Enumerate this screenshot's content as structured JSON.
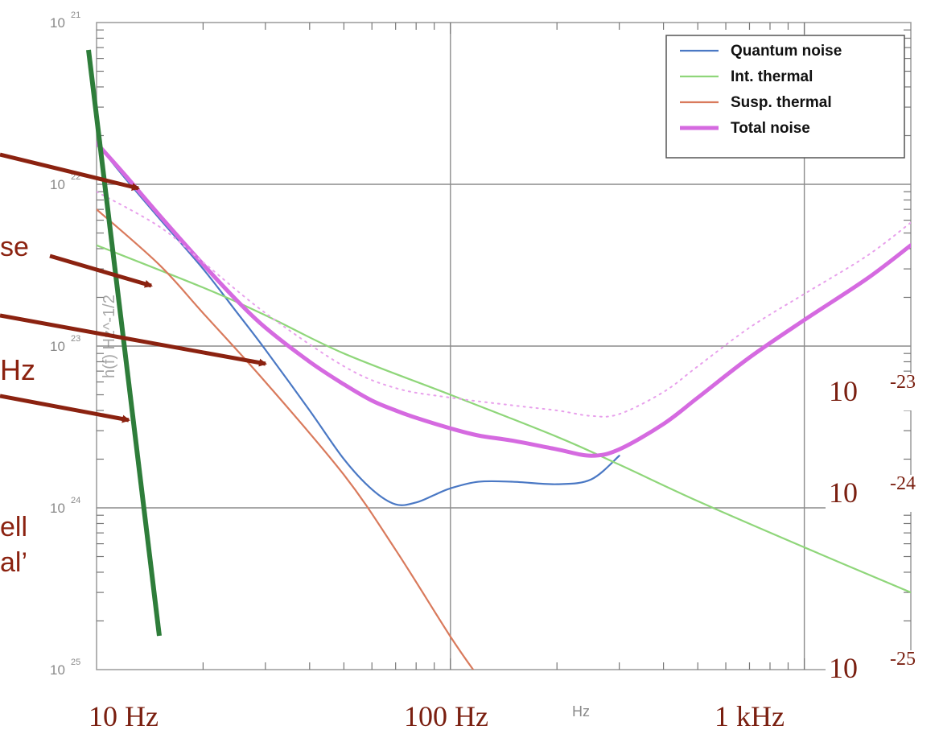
{
  "chart_data": {
    "type": "line",
    "x_scale": "log",
    "y_scale": "log",
    "xlim": [
      10,
      2000
    ],
    "ylim": [
      1e-25,
      1e-21
    ],
    "grid": true,
    "legend_position": "top-right",
    "y_ticks": [
      {
        "value": 1e-21,
        "base": "10",
        "exp": "21"
      },
      {
        "value": 1e-22,
        "base": "10",
        "exp": "22"
      },
      {
        "value": 1e-23,
        "base": "10",
        "exp": "23"
      },
      {
        "value": 1e-24,
        "base": "10",
        "exp": "24"
      },
      {
        "value": 1e-25,
        "base": "10",
        "exp": "25"
      }
    ],
    "ylabel_fragment": "h(f) Hz^-1/2",
    "xlabel_fragment": "Hz",
    "series": [
      {
        "name": "Quantum noise",
        "color": "#4a78c4",
        "x": [
          10,
          12,
          15,
          20,
          25,
          30,
          40,
          50,
          60,
          70,
          80,
          90,
          100,
          120,
          150,
          200,
          250,
          300
        ],
        "y": [
          1.8e-22,
          1.1e-22,
          6.2e-23,
          3e-23,
          1.6e-23,
          9.5e-24,
          4e-24,
          2e-24,
          1.3e-24,
          1.05e-24,
          1.08e-24,
          1.2e-24,
          1.32e-24,
          1.45e-24,
          1.45e-24,
          1.4e-24,
          1.5e-24,
          2.1e-24
        ]
      },
      {
        "name": "Int. thermal",
        "color": "#8fd67a",
        "x": [
          10,
          20,
          30,
          50,
          100,
          200,
          300,
          500,
          1000,
          2000
        ],
        "y": [
          4.2e-23,
          2.3e-23,
          1.55e-23,
          9e-24,
          5e-24,
          2.75e-24,
          1.85e-24,
          1.1e-24,
          5.7e-25,
          3e-25
        ]
      },
      {
        "name": "Susp. thermal",
        "color": "#d97a5c",
        "x": [
          10,
          15,
          20,
          30,
          50,
          70,
          100,
          120
        ],
        "y": [
          7e-23,
          3.2e-23,
          1.6e-23,
          6e-24,
          1.6e-24,
          5.5e-25,
          1.6e-25,
          9e-26
        ]
      },
      {
        "name": "Total noise",
        "color": "#d56ae0",
        "x": [
          10,
          12,
          15,
          20,
          25,
          30,
          40,
          50,
          60,
          70,
          80,
          100,
          120,
          150,
          200,
          250,
          300,
          400,
          500,
          700,
          1000,
          1500,
          2000
        ],
        "y": [
          1.8e-22,
          1.15e-22,
          6.5e-23,
          3.2e-23,
          1.9e-23,
          1.3e-23,
          8e-24,
          5.8e-24,
          4.6e-24,
          4e-24,
          3.6e-24,
          3.1e-24,
          2.8e-24,
          2.6e-24,
          2.3e-24,
          2.1e-24,
          2.3e-24,
          3.3e-24,
          4.8e-24,
          8.5e-24,
          1.45e-23,
          2.6e-23,
          4.2e-23
        ]
      },
      {
        "name": "",
        "style": "dotted",
        "color": "#e8a0ec",
        "x": [
          10,
          15,
          20,
          30,
          50,
          70,
          100,
          150,
          200,
          250,
          300,
          400,
          500,
          700,
          1000,
          1500,
          2000
        ],
        "y": [
          9e-23,
          5.5e-23,
          3.3e-23,
          1.6e-23,
          7.5e-24,
          5.5e-24,
          4.8e-24,
          4.3e-24,
          4e-24,
          3.7e-24,
          3.8e-24,
          5.2e-24,
          7.5e-24,
          1.3e-23,
          2.1e-23,
          3.6e-23,
          5.8e-23
        ]
      }
    ],
    "overlay_labels": {
      "x": [
        "10 Hz",
        "100 Hz",
        "1 kHz"
      ],
      "y": [
        {
          "base": "10",
          "exp": "-23"
        },
        {
          "base": "10",
          "exp": "-24"
        },
        {
          "base": "10",
          "exp": "-25"
        }
      ]
    },
    "annotations": [
      {
        "text": "se"
      },
      {
        "text": "Hz"
      },
      {
        "text": "ell"
      },
      {
        "text": "al’"
      }
    ],
    "line_color": "#2e7d3a",
    "arrow_color": "#8b2210"
  }
}
